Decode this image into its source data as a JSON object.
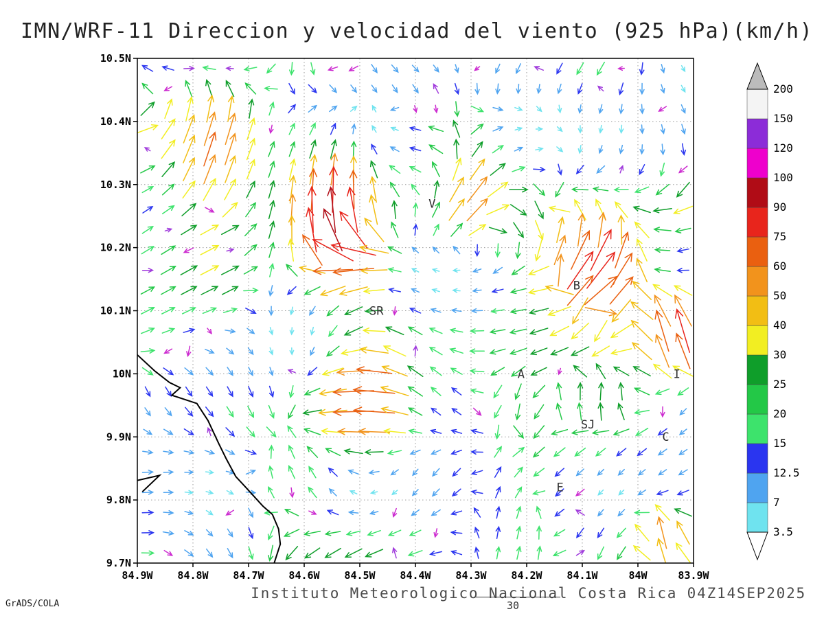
{
  "header": {
    "title": "IMN/WRF-11 Direccion y velocidad del viento (925 hPa)(km/h)"
  },
  "footer": {
    "caption": "Instituto Meteorologico Nacional Costa Rica 04Z14SEP2025",
    "credit": "GrADS/COLA",
    "contour_label": "30"
  },
  "chart_data": {
    "type": "vector_field",
    "title": "IMN/WRF-11 Direccion y velocidad del viento (925 hPa)(km/h)",
    "units": "km/h",
    "lon_min_W": 84.9,
    "lon_max_W": 83.9,
    "lat_min_N": 9.7,
    "lat_max_N": 10.5,
    "grid_step_deg": 0.1,
    "x_tick_labels": [
      "84.9W",
      "84.8W",
      "84.7W",
      "84.6W",
      "84.5W",
      "84.4W",
      "84.3W",
      "84.2W",
      "84.1W",
      "84W",
      "83.9W"
    ],
    "y_tick_labels": [
      "9.7N",
      "9.8N",
      "9.9N",
      "10N",
      "10.1N",
      "10.2N",
      "10.3N",
      "10.4N",
      "10.5N"
    ],
    "colorbar": {
      "levels": [
        3.5,
        7,
        12.5,
        15,
        20,
        25,
        30,
        40,
        50,
        60,
        75,
        90,
        100,
        120,
        150,
        200
      ],
      "segment_colors": [
        "#6FE3EF",
        "#4FA4F0",
        "#2A35F0",
        "#3DE36C",
        "#23C847",
        "#0F9E2A",
        "#F2EE22",
        "#F2BE14",
        "#F2931C",
        "#EA6010",
        "#E8251C",
        "#B00C16",
        "#EE00CC",
        "#8C2CD8",
        "#F4F4F4"
      ],
      "below_color": "#FFFFFF",
      "above_color": "#BBBBBB"
    },
    "stations": [
      {
        "label": "V",
        "lon_W": 84.37,
        "lat_N": 10.27
      },
      {
        "label": "B",
        "lon_W": 84.11,
        "lat_N": 10.14
      },
      {
        "label": "SR",
        "lon_W": 84.47,
        "lat_N": 10.1
      },
      {
        "label": "A",
        "lon_W": 84.21,
        "lat_N": 10.0
      },
      {
        "label": "SJ",
        "lon_W": 84.09,
        "lat_N": 9.92
      },
      {
        "label": "C",
        "lon_W": 83.95,
        "lat_N": 9.9
      },
      {
        "label": "E",
        "lon_W": 84.14,
        "lat_N": 9.82
      },
      {
        "label": "I",
        "lon_W": 83.93,
        "lat_N": 10.0
      }
    ],
    "coastline": [
      [
        [
          84.9,
          10.03
        ],
        [
          84.868,
          10.004
        ],
        [
          84.842,
          9.986
        ],
        [
          84.823,
          9.978
        ],
        [
          84.838,
          9.966
        ],
        [
          84.793,
          9.953
        ],
        [
          84.773,
          9.926
        ],
        [
          84.754,
          9.89
        ],
        [
          84.74,
          9.865
        ],
        [
          84.723,
          9.837
        ],
        [
          84.706,
          9.821
        ],
        [
          84.674,
          9.79
        ],
        [
          84.657,
          9.777
        ],
        [
          84.646,
          9.754
        ],
        [
          84.643,
          9.73
        ],
        [
          84.654,
          9.7
        ]
      ],
      [
        [
          84.9,
          9.831
        ],
        [
          84.86,
          9.839
        ],
        [
          84.891,
          9.813
        ]
      ]
    ],
    "vector_field": {
      "cols": 27,
      "rows": 25,
      "seed": 11,
      "speed_base": 4,
      "speed_range": 24,
      "calm_fraction": 0.12,
      "calm_colors": [
        "#A03BDC",
        "#CC2BD0"
      ],
      "regional_flows": [
        {
          "cx": 0.62,
          "cy": 0.42,
          "rx": 0.45,
          "ry": 0.2,
          "dir": 185,
          "weight": 0.55
        },
        {
          "cx": 0.1,
          "cy": 0.68,
          "rx": 0.3,
          "ry": 0.35,
          "dir": 25,
          "weight": 0.6
        },
        {
          "cx": 0.5,
          "cy": 0.85,
          "rx": 0.3,
          "ry": 0.18,
          "dir": 160,
          "weight": 0.35
        },
        {
          "cx": 0.85,
          "cy": 0.1,
          "rx": 0.25,
          "ry": 0.15,
          "dir": -30,
          "weight": 0.3
        },
        {
          "cx": 0.15,
          "cy": 0.25,
          "rx": 0.2,
          "ry": 0.2,
          "dir": 70,
          "weight": 0.35
        }
      ],
      "features": [
        {
          "lon_W": 84.56,
          "lat_N": 10.26,
          "dir": 90,
          "speed": 85,
          "radius": 0.08
        },
        {
          "lon_W": 84.52,
          "lat_N": 10.17,
          "dir": 195,
          "speed": 50,
          "radius": 0.06
        },
        {
          "lon_W": 84.49,
          "lat_N": 9.95,
          "dir": 185,
          "speed": 72,
          "radius": 0.07
        },
        {
          "lon_W": 84.07,
          "lat_N": 10.17,
          "dir": 40,
          "speed": 80,
          "radius": 0.08
        },
        {
          "lon_W": 83.93,
          "lat_N": 10.07,
          "dir": 80,
          "speed": 62,
          "radius": 0.06
        },
        {
          "lon_W": 83.95,
          "lat_N": 9.74,
          "dir": 85,
          "speed": 42,
          "radius": 0.05
        },
        {
          "lon_W": 84.76,
          "lat_N": 10.37,
          "dir": 75,
          "speed": 33,
          "radius": 0.07
        },
        {
          "lon_W": 84.3,
          "lat_N": 10.28,
          "dir": 60,
          "speed": 45,
          "radius": 0.06
        }
      ]
    }
  }
}
